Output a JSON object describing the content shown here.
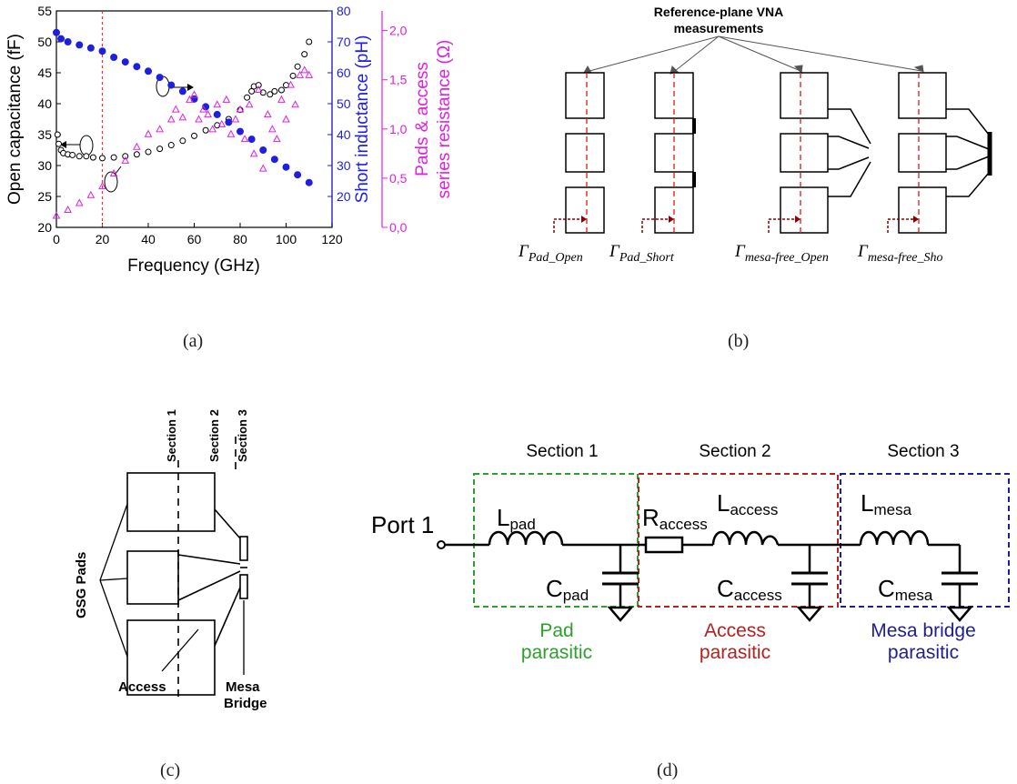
{
  "captions": {
    "a": "(a)",
    "b": "(b)",
    "c": "(c)",
    "d": "(d)"
  },
  "chart_data": {
    "type": "scatter",
    "xlabel": "Frequency (GHz)",
    "xlim": [
      0,
      120
    ],
    "x_ticks": [
      "0",
      "20",
      "40",
      "60",
      "80",
      "100",
      "120"
    ],
    "y_left": {
      "label": "Open capacitance (fF)",
      "lim": [
        20,
        55
      ],
      "ticks": [
        "20",
        "25",
        "30",
        "35",
        "40",
        "45",
        "50",
        "55"
      ],
      "color": "#000000"
    },
    "y_right1": {
      "label": "Short inductance (pH)",
      "lim": [
        10,
        80
      ],
      "ticks": [
        "20",
        "30",
        "40",
        "50",
        "60",
        "70",
        "80"
      ],
      "color": "#1f1fe0"
    },
    "y_right2": {
      "label_line1": "Pads & access",
      "label_line2": "series resistance (Ω)",
      "lim": [
        0,
        2.2
      ],
      "ticks": [
        "0,0",
        "0,5",
        "1,0",
        "1,5",
        "2,0"
      ],
      "color": "#e020e0"
    },
    "marker_line_x": 20,
    "series": [
      {
        "axis": "left",
        "color": "#000000",
        "x": [
          0.5,
          1,
          2,
          3,
          5,
          7,
          10,
          13,
          16,
          20,
          25,
          30,
          35,
          40,
          45,
          50,
          55,
          60,
          65,
          70,
          75,
          80,
          83,
          85,
          86,
          88,
          90,
          93,
          95,
          98,
          100,
          103,
          105,
          108,
          110
        ],
        "y": [
          35,
          33.5,
          32.5,
          32,
          31.8,
          31.7,
          31.5,
          31.5,
          31.3,
          31.2,
          31.3,
          31.5,
          31.8,
          32.2,
          32.7,
          33.3,
          34,
          34.8,
          35.7,
          36.5,
          37.5,
          39,
          41,
          42,
          42.8,
          43,
          41.8,
          41.5,
          42,
          42.2,
          43,
          44.5,
          46,
          48,
          50
        ]
      },
      {
        "axis": "right1",
        "color": "#1f1fe0",
        "x": [
          0,
          2,
          5,
          10,
          15,
          20,
          25,
          30,
          35,
          40,
          45,
          50,
          55,
          60,
          65,
          70,
          75,
          80,
          85,
          90,
          95,
          100,
          105,
          110
        ],
        "y": [
          73,
          71,
          70,
          69,
          68,
          67,
          65,
          63.5,
          62,
          60.5,
          58.5,
          56,
          54,
          51.5,
          49,
          46.5,
          44,
          41,
          38.5,
          35,
          32,
          29.5,
          27,
          24.5
        ]
      },
      {
        "axis": "right2",
        "color": "#e020e0",
        "x": [
          0,
          5,
          10,
          15,
          20,
          25,
          30,
          35,
          40,
          45,
          50,
          52,
          55,
          58,
          60,
          62,
          64,
          66,
          68,
          70,
          72,
          74,
          76,
          78,
          80,
          82,
          84,
          86,
          88,
          90,
          92,
          94,
          96,
          98,
          100,
          102,
          104,
          106,
          108,
          110
        ],
        "y": [
          0.12,
          0.18,
          0.25,
          0.33,
          0.42,
          0.55,
          0.68,
          0.82,
          0.95,
          1.0,
          1.1,
          1.2,
          1.12,
          1.3,
          1.35,
          1.1,
          1.2,
          1.15,
          1.0,
          1.25,
          1.05,
          1.3,
          0.95,
          1.1,
          1.2,
          0.9,
          1.25,
          0.75,
          1.4,
          0.6,
          1.15,
          1.0,
          0.9,
          1.3,
          1.1,
          1.45,
          1.25,
          1.55,
          1.6,
          1.55
        ]
      }
    ]
  },
  "fig_b": {
    "title_line1": "Reference-plane VNA",
    "title_line2": "measurements",
    "gamma": "Γ",
    "labels": [
      "Pad_Open",
      "Pad_Short",
      "mesa-free_Open",
      "mesa-free_Sho"
    ]
  },
  "fig_c": {
    "sections": [
      "Section 1",
      "Section 2",
      "Section 3"
    ],
    "gsg_label": "GSG Pads",
    "access_label": "Access",
    "mesa_label_line1": "Mesa",
    "mesa_label_line2": "Bridge"
  },
  "fig_d": {
    "sections": [
      "Section 1",
      "Section 2",
      "Section 3"
    ],
    "port": "Port 1",
    "L_pad_main": "L",
    "L_pad_sub": "pad",
    "C_pad_main": "C",
    "C_pad_sub": "pad",
    "R_access_main": "R",
    "R_access_sub": "access",
    "L_access_main": "L",
    "L_access_sub": "access",
    "C_access_main": "C",
    "C_access_sub": "access",
    "L_mesa_main": "L",
    "L_mesa_sub": "mesa",
    "C_mesa_main": "C",
    "C_mesa_sub": "mesa",
    "group1_line1": "Pad",
    "group1_line2": "parasitic",
    "group2_line1": "Access",
    "group2_line2": "parasitic",
    "group3_line1": "Mesa bridge",
    "group3_line2": "parasitic",
    "colors": {
      "pad": "#2ca02c",
      "access": "#b22222",
      "mesa": "#1f1f8f"
    }
  }
}
